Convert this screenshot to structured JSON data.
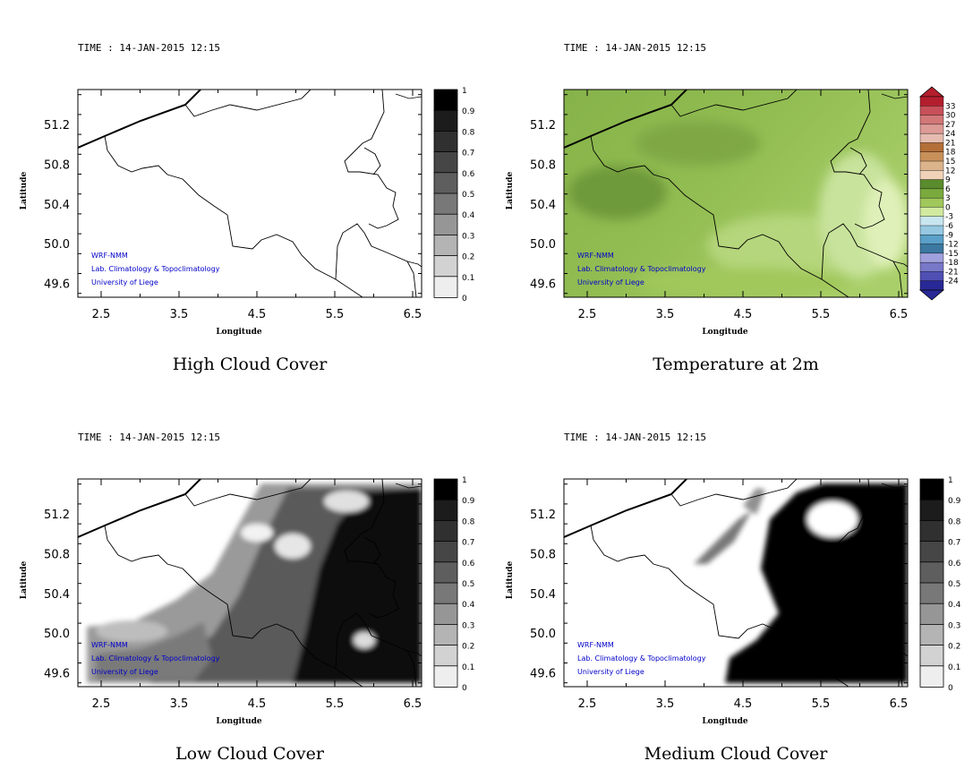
{
  "time_label": "TIME : 14-JAN-2015 12:15",
  "axes": {
    "xlabel": "Longitude",
    "ylabel": "Latitude",
    "x_ticks": [
      "2.5",
      "3.5",
      "4.5",
      "5.5",
      "6.5"
    ],
    "y_ticks": [
      "51.2",
      "50.8",
      "50.4",
      "50.0",
      "49.6"
    ]
  },
  "credits": [
    "WRF-NMM",
    "Lab. Climatology & Topoclimatology",
    "University of Liege"
  ],
  "panels": [
    {
      "id": "high-cloud",
      "title": "High Cloud Cover",
      "field": "high",
      "scale": "cloud"
    },
    {
      "id": "temperature",
      "title": "Temperature at 2m",
      "field": "temp",
      "scale": "temp"
    },
    {
      "id": "low-cloud",
      "title": "Low Cloud Cover",
      "field": "low",
      "scale": "cloud"
    },
    {
      "id": "medium-cloud",
      "title": "Medium Cloud Cover",
      "field": "medium",
      "scale": "cloud"
    }
  ],
  "colorbars": {
    "cloud": {
      "labels": [
        "1",
        "0.9",
        "0.8",
        "0.7",
        "0.6",
        "0.5",
        "0.4",
        "0.3",
        "0.2",
        "0.1",
        "0"
      ],
      "colors": [
        "#000000",
        "#1c1c1c",
        "#303030",
        "#464646",
        "#5e5e5e",
        "#787878",
        "#969696",
        "#b4b4b4",
        "#d2d2d2",
        "#eeeeee"
      ]
    },
    "temp": {
      "labels": [
        "33",
        "30",
        "27",
        "24",
        "21",
        "18",
        "15",
        "12",
        "9",
        "6",
        "3",
        "0",
        "-3",
        "-6",
        "-9",
        "-12",
        "-15",
        "-18",
        "-21",
        "-24"
      ],
      "colors": [
        "#b41e2d",
        "#c8505a",
        "#d27878",
        "#dc9b96",
        "#e6bcb1",
        "#b36f37",
        "#c8915a",
        "#dcb48c",
        "#f0d2b9",
        "#5a8c2d",
        "#7aaa3e",
        "#a0c85a",
        "#d2eaa0",
        "#c8e6f0",
        "#96c8e1",
        "#5aa0c8",
        "#3c78a0",
        "#a0a0dc",
        "#7878c8",
        "#5050b4",
        "#282896"
      ]
    }
  },
  "fields": {
    "high": "none",
    "temp": "mostly 3 to 9, colder 0 to 3 toward the southeast",
    "low": "dense cloud in the east, broken cloud over the centre, clear in the northwest",
    "medium": "dense cloud in the east and south, clear in the west"
  }
}
